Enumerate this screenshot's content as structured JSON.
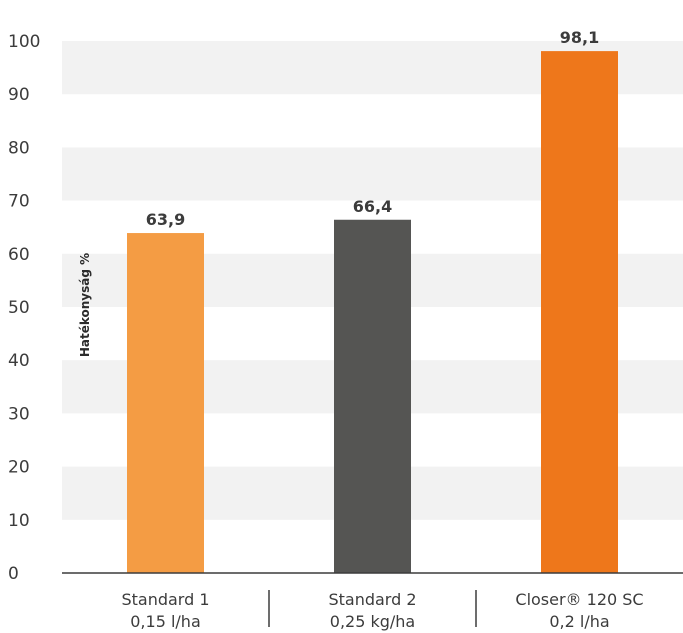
{
  "chart_data": {
    "type": "bar",
    "ylabel": "Hatékonyság %",
    "ylim": [
      0,
      100
    ],
    "yticks": [
      0,
      10,
      20,
      30,
      40,
      50,
      60,
      70,
      80,
      90,
      100
    ],
    "grid": "alternating horizontal bands",
    "categories": [
      {
        "line1": "Standard 1",
        "line2": "0,15 l/ha"
      },
      {
        "line1": "Standard 2",
        "line2": "0,25 kg/ha"
      },
      {
        "line1": "Closer® 120 SC",
        "line2": "0,2 l/ha"
      }
    ],
    "values": [
      63.9,
      66.4,
      98.1
    ],
    "value_labels": [
      "63,9",
      "66,4",
      "98,1"
    ],
    "colors": [
      "#f49c44",
      "#555553",
      "#ee771b"
    ],
    "band_color": "#f2f2f2"
  }
}
